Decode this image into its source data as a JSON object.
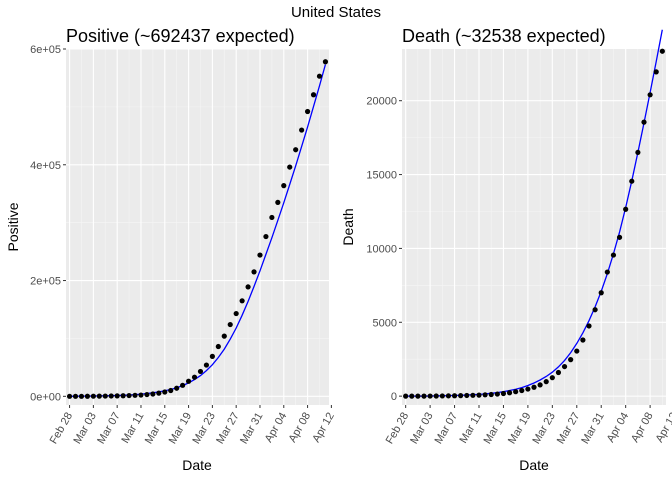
{
  "figure_title": "United States",
  "chart_data": [
    {
      "type": "scatter",
      "title": "Positive (~692437 expected)",
      "xlabel": "Date",
      "ylabel": "Positive",
      "grid": true,
      "x_start": "2020-02-28",
      "x_ticks": [
        "Feb 28",
        "Mar 03",
        "Mar 07",
        "Mar 11",
        "Mar 15",
        "Mar 19",
        "Mar 23",
        "Mar 27",
        "Mar 31",
        "Apr 04",
        "Apr 08",
        "Apr 12"
      ],
      "y_ticks": [
        "0e+00",
        "2e+05",
        "4e+05",
        "6e+05"
      ],
      "y_tick_values": [
        0,
        200000,
        400000,
        600000
      ],
      "ylim": [
        -15000,
        600000
      ],
      "points": [
        0,
        0,
        0,
        100,
        200,
        300,
        400,
        600,
        800,
        1000,
        1300,
        1700,
        2200,
        3000,
        4000,
        5500,
        7500,
        10000,
        14000,
        19000,
        26000,
        33000,
        43000,
        54000,
        69000,
        86000,
        104000,
        124000,
        143000,
        165000,
        189000,
        215000,
        244000,
        276000,
        309000,
        335000,
        364000,
        396000,
        426000,
        460000,
        492000,
        521000,
        553000,
        578000
      ],
      "fit": [
        100,
        200,
        300,
        400,
        500,
        700,
        900,
        1100,
        1400,
        1800,
        2300,
        3000,
        3800,
        4800,
        6100,
        7600,
        9500,
        11800,
        14800,
        18500,
        23100,
        28800,
        35800,
        44400,
        54700,
        67000,
        81600,
        98600,
        118000,
        139900,
        163900,
        189700,
        216900,
        245100,
        274100,
        303900,
        334500,
        365900,
        398200,
        431400,
        465500,
        500500,
        536400,
        573100
      ],
      "point_color": "#000000",
      "line_color": "#0000ff"
    },
    {
      "type": "scatter",
      "title": "Death (~32538 expected)",
      "xlabel": "Date",
      "ylabel": "Death",
      "grid": true,
      "x_start": "2020-02-28",
      "x_ticks": [
        "Feb 28",
        "Mar 03",
        "Mar 07",
        "Mar 11",
        "Mar 15",
        "Mar 19",
        "Mar 23",
        "Mar 27",
        "Mar 31",
        "Apr 04",
        "Apr 08",
        "Apr 12"
      ],
      "y_ticks": [
        "0",
        "5000",
        "10000",
        "15000",
        "20000"
      ],
      "y_tick_values": [
        0,
        5000,
        10000,
        15000,
        20000
      ],
      "ylim": [
        -600,
        23500
      ],
      "points": [
        0,
        0,
        0,
        0,
        5,
        10,
        15,
        20,
        25,
        35,
        45,
        55,
        70,
        90,
        110,
        140,
        180,
        230,
        300,
        380,
        480,
        600,
        760,
        980,
        1250,
        1600,
        2000,
        2470,
        3050,
        3800,
        4750,
        5850,
        7000,
        8400,
        9550,
        10750,
        12650,
        14550,
        16500,
        18550,
        20400,
        21950,
        23350
      ],
      "fit": [
        0,
        0,
        0,
        5,
        10,
        15,
        25,
        35,
        45,
        60,
        75,
        95,
        120,
        150,
        190,
        240,
        300,
        380,
        470,
        580,
        720,
        890,
        1090,
        1330,
        1620,
        1980,
        2420,
        2950,
        3570,
        4290,
        5110,
        6040,
        7090,
        8280,
        9620,
        11120,
        12780,
        14580,
        16500,
        18500,
        20550,
        22650,
        24800
      ],
      "point_color": "#000000",
      "line_color": "#0000ff"
    }
  ]
}
